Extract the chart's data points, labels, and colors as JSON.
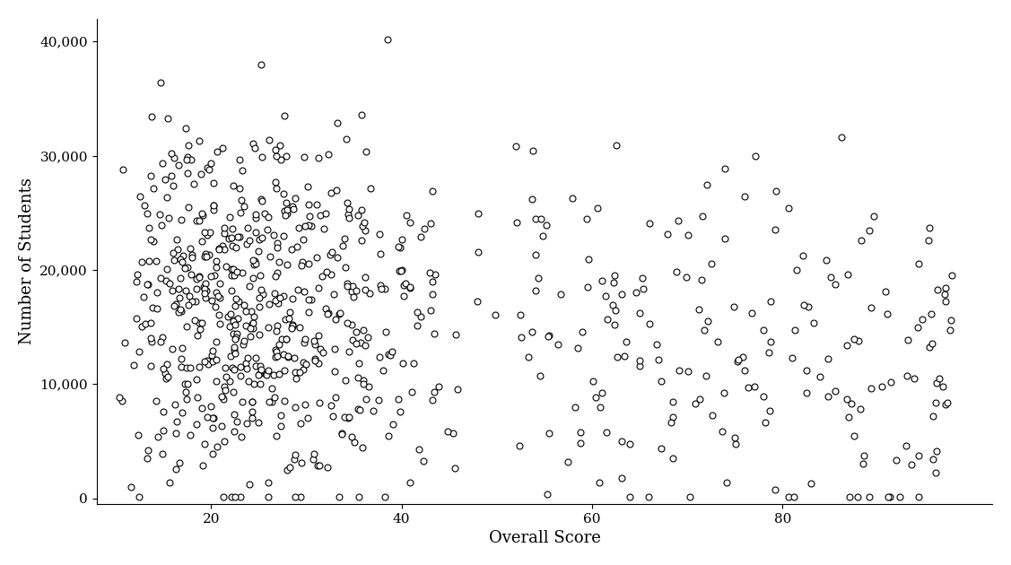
{
  "title": "",
  "xlabel": "Overall Score",
  "ylabel": "Number of Students",
  "xlim": [
    8,
    102
  ],
  "ylim": [
    -500,
    42000
  ],
  "xticks": [
    20,
    40,
    60,
    80
  ],
  "yticks": [
    0,
    10000,
    20000,
    30000,
    40000
  ],
  "marker": "o",
  "marker_size": 5,
  "marker_color": "white",
  "marker_edge_color": "black",
  "marker_edge_width": 0.8,
  "background_color": "white",
  "seed": 42,
  "n_points": 800,
  "xlabel_fontsize": 13,
  "ylabel_fontsize": 13,
  "tick_fontsize": 11
}
